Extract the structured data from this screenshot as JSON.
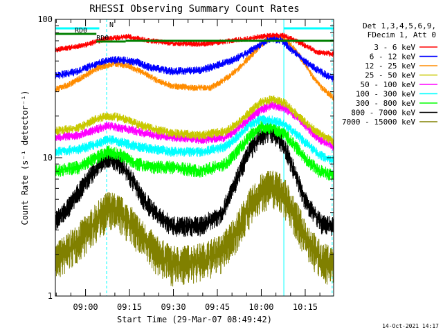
{
  "chart_data": {
    "type": "line",
    "title": "RHESSI Observing Summary Count Rates",
    "xlabel": "Start Time (29-Mar-07 08:49:42)",
    "ylabel": "Count Rate (s⁻¹ detector⁻¹)",
    "y_scale": "log",
    "ylim": [
      1,
      100
    ],
    "y_ticks": [
      "1",
      "10",
      "100"
    ],
    "x_range_minutes": [
      0,
      95
    ],
    "x_ticks": [
      {
        "label": "09:00",
        "minute": 10.3
      },
      {
        "label": "09:15",
        "minute": 25.3
      },
      {
        "label": "09:30",
        "minute": 40.3
      },
      {
        "label": "09:45",
        "minute": 55.3
      },
      {
        "label": "10:00",
        "minute": 70.3
      },
      {
        "label": "10:15",
        "minute": 85.3
      }
    ],
    "legend_header": [
      "Det 1,3,4,5,6,9,",
      "FDecim 1, Att 0"
    ],
    "legend_position": "right",
    "flags": [
      {
        "label": "N",
        "color": "#00ffff",
        "start": 0,
        "end": 15
      },
      {
        "label": "RD0",
        "color": "#008000",
        "start": 0,
        "end": 14
      },
      {
        "label": "RD0",
        "color": "#008000",
        "start": 14,
        "end": 24
      },
      {
        "label": "",
        "color": "#00ffff",
        "start": 78,
        "end": 95
      }
    ],
    "night_lines": [
      {
        "minute": 0,
        "style": "solid"
      },
      {
        "minute": 17.5,
        "style": "dashed"
      },
      {
        "minute": 78,
        "style": "solid"
      },
      {
        "minute": 94.5,
        "style": "dashed"
      }
    ],
    "series": [
      {
        "name": "3 - 6 keV",
        "color": "#ff0000",
        "x": [
          0,
          10,
          17,
          25,
          32,
          40,
          50,
          60,
          65,
          70,
          74,
          78,
          82,
          87,
          89,
          95
        ],
        "y": [
          60,
          65,
          72,
          75,
          70,
          67,
          66,
          70,
          72,
          75,
          77,
          76,
          70,
          62,
          58,
          56
        ]
      },
      {
        "name": "6 - 12 keV",
        "color": "#0000ff",
        "x": [
          0,
          8,
          12,
          17,
          22,
          28,
          32,
          40,
          50,
          60,
          66,
          70,
          73,
          77,
          80,
          84,
          88,
          92,
          95
        ],
        "y": [
          39,
          42,
          46,
          50,
          51,
          49,
          45,
          42,
          43,
          50,
          58,
          66,
          72,
          71,
          62,
          52,
          45,
          40,
          37
        ]
      },
      {
        "name": "12 - 25 keV",
        "color": "#ff8c00",
        "x": [
          0,
          5,
          10,
          15,
          20,
          25,
          30,
          35,
          40,
          47,
          53,
          58,
          63,
          67,
          70,
          73,
          76,
          79,
          82,
          85,
          88,
          91,
          95
        ],
        "y": [
          31,
          34,
          39,
          45,
          48,
          46,
          41,
          36,
          33,
          32,
          32,
          37,
          45,
          55,
          65,
          73,
          75,
          70,
          60,
          48,
          38,
          32,
          27
        ]
      },
      {
        "name": "25 - 50 keV",
        "color": "#c8c800",
        "x": [
          0,
          8,
          14,
          18,
          22,
          28,
          34,
          40,
          50,
          58,
          62,
          66,
          70,
          74,
          78,
          82,
          86,
          90,
          95
        ],
        "y": [
          15.5,
          16.5,
          19,
          20,
          19.5,
          17.5,
          16,
          15,
          14.5,
          15.5,
          17.5,
          21,
          25,
          26.5,
          25,
          21,
          17.5,
          15,
          13
        ]
      },
      {
        "name": "50 - 100 keV",
        "color": "#ff00ff",
        "x": [
          0,
          8,
          14,
          18,
          22,
          28,
          34,
          40,
          50,
          58,
          62,
          66,
          70,
          74,
          78,
          82,
          86,
          90,
          95
        ],
        "y": [
          14,
          14.5,
          16,
          17,
          16.5,
          15.5,
          14.5,
          14,
          13.5,
          14,
          16,
          19,
          22,
          24,
          23,
          20,
          16.5,
          13.5,
          12
        ]
      },
      {
        "name": "100 - 300 keV",
        "color": "#00ffff",
        "x": [
          0,
          8,
          14,
          18,
          22,
          28,
          34,
          40,
          50,
          58,
          62,
          66,
          70,
          74,
          78,
          82,
          86,
          90,
          95
        ],
        "y": [
          11,
          11.5,
          12.5,
          13.5,
          13,
          12,
          11.5,
          11,
          11,
          12,
          14,
          17,
          19,
          18.5,
          17.5,
          15,
          12.5,
          10.5,
          9.5
        ]
      },
      {
        "name": "300 - 800 keV",
        "color": "#00ff00",
        "x": [
          0,
          8,
          14,
          18,
          22,
          28,
          34,
          40,
          50,
          58,
          62,
          66,
          70,
          74,
          78,
          82,
          86,
          90,
          95
        ],
        "y": [
          8,
          8.5,
          10,
          11,
          10.5,
          9,
          8.5,
          8.5,
          8,
          9,
          11,
          14,
          16.5,
          16.5,
          15,
          12,
          9.5,
          8,
          7.5
        ]
      },
      {
        "name": "800 - 7000 keV",
        "color": "#000000",
        "x": [
          0,
          5,
          10,
          15,
          18,
          22,
          26,
          30,
          35,
          40,
          50,
          57,
          62,
          66,
          70,
          73,
          76,
          79,
          82,
          85,
          88,
          91,
          95
        ],
        "y": [
          3.5,
          4.5,
          6.5,
          9,
          10,
          9,
          7,
          5,
          3.8,
          3.2,
          3.2,
          4,
          7,
          11,
          14,
          15.5,
          14,
          11,
          7.5,
          5,
          4,
          3.3,
          3.2
        ]
      },
      {
        "name": "7000 - 15000 keV",
        "color": "#808000",
        "x": [
          0,
          5,
          10,
          15,
          18,
          22,
          26,
          30,
          35,
          40,
          50,
          57,
          62,
          66,
          70,
          73,
          76,
          79,
          82,
          85,
          88,
          91,
          95
        ],
        "y": [
          1.8,
          2.2,
          2.8,
          3.7,
          4.3,
          4,
          3.3,
          2.6,
          2,
          1.7,
          1.8,
          2.1,
          3,
          4.3,
          5.6,
          6.2,
          6,
          5,
          3.7,
          2.8,
          2.2,
          1.8,
          1.7
        ]
      }
    ]
  },
  "timestamp": "14-Oct-2021 14:17"
}
